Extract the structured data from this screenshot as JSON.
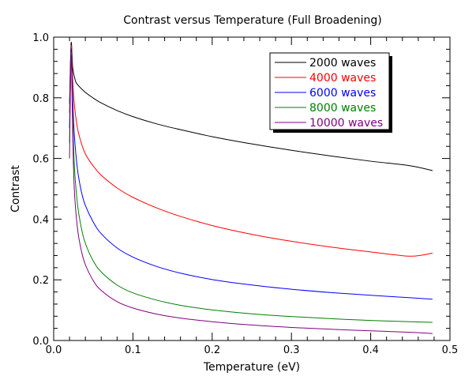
{
  "chart_data": {
    "type": "line",
    "title": "Contrast versus Temperature (Full Broadening)",
    "xlabel": "Temperature (eV)",
    "ylabel": "Contrast",
    "xlim": [
      0.0,
      0.5
    ],
    "ylim": [
      0.0,
      1.0
    ],
    "x_ticks": [
      "0.0",
      "0.1",
      "0.2",
      "0.3",
      "0.4",
      "0.5"
    ],
    "y_ticks": [
      "0.0",
      "0.2",
      "0.4",
      "0.6",
      "0.8",
      "1.0"
    ],
    "grid": false,
    "legend_position": "top-right",
    "series": [
      {
        "name": "2000 waves",
        "color": "#000000",
        "points": [
          [
            0.02,
            0.78
          ],
          [
            0.022,
            0.98
          ],
          [
            0.024,
            0.9
          ],
          [
            0.027,
            0.86
          ],
          [
            0.03,
            0.844
          ],
          [
            0.04,
            0.818
          ],
          [
            0.05,
            0.799
          ],
          [
            0.06,
            0.783
          ],
          [
            0.08,
            0.758
          ],
          [
            0.1,
            0.738
          ],
          [
            0.13,
            0.714
          ],
          [
            0.16,
            0.695
          ],
          [
            0.2,
            0.672
          ],
          [
            0.25,
            0.648
          ],
          [
            0.3,
            0.627
          ],
          [
            0.35,
            0.608
          ],
          [
            0.4,
            0.591
          ],
          [
            0.45,
            0.576
          ],
          [
            0.478,
            0.56
          ]
        ]
      },
      {
        "name": "4000 waves",
        "color": "#ff0000",
        "points": [
          [
            0.02,
            0.75
          ],
          [
            0.022,
            0.97
          ],
          [
            0.024,
            0.86
          ],
          [
            0.026,
            0.78
          ],
          [
            0.03,
            0.7
          ],
          [
            0.035,
            0.65
          ],
          [
            0.04,
            0.615
          ],
          [
            0.05,
            0.575
          ],
          [
            0.06,
            0.545
          ],
          [
            0.08,
            0.503
          ],
          [
            0.1,
            0.472
          ],
          [
            0.13,
            0.437
          ],
          [
            0.16,
            0.409
          ],
          [
            0.2,
            0.379
          ],
          [
            0.25,
            0.35
          ],
          [
            0.3,
            0.327
          ],
          [
            0.35,
            0.308
          ],
          [
            0.4,
            0.292
          ],
          [
            0.45,
            0.278
          ],
          [
            0.478,
            0.288
          ]
        ]
      },
      {
        "name": "6000 waves",
        "color": "#0000ff",
        "points": [
          [
            0.02,
            0.7
          ],
          [
            0.022,
            0.96
          ],
          [
            0.024,
            0.8
          ],
          [
            0.026,
            0.68
          ],
          [
            0.03,
            0.565
          ],
          [
            0.035,
            0.49
          ],
          [
            0.04,
            0.445
          ],
          [
            0.05,
            0.39
          ],
          [
            0.06,
            0.352
          ],
          [
            0.08,
            0.305
          ],
          [
            0.1,
            0.275
          ],
          [
            0.13,
            0.244
          ],
          [
            0.16,
            0.222
          ],
          [
            0.2,
            0.201
          ],
          [
            0.25,
            0.183
          ],
          [
            0.3,
            0.169
          ],
          [
            0.35,
            0.158
          ],
          [
            0.4,
            0.149
          ],
          [
            0.45,
            0.141
          ],
          [
            0.478,
            0.136
          ]
        ]
      },
      {
        "name": "8000 waves",
        "color": "#008000",
        "points": [
          [
            0.02,
            0.65
          ],
          [
            0.022,
            0.95
          ],
          [
            0.024,
            0.74
          ],
          [
            0.026,
            0.58
          ],
          [
            0.03,
            0.45
          ],
          [
            0.035,
            0.37
          ],
          [
            0.04,
            0.32
          ],
          [
            0.05,
            0.262
          ],
          [
            0.06,
            0.226
          ],
          [
            0.08,
            0.183
          ],
          [
            0.1,
            0.157
          ],
          [
            0.13,
            0.133
          ],
          [
            0.16,
            0.116
          ],
          [
            0.2,
            0.101
          ],
          [
            0.25,
            0.088
          ],
          [
            0.3,
            0.079
          ],
          [
            0.35,
            0.072
          ],
          [
            0.4,
            0.066
          ],
          [
            0.45,
            0.062
          ],
          [
            0.478,
            0.06
          ]
        ]
      },
      {
        "name": "10000 waves",
        "color": "#800080",
        "points": [
          [
            0.02,
            0.6
          ],
          [
            0.022,
            0.94
          ],
          [
            0.024,
            0.68
          ],
          [
            0.026,
            0.5
          ],
          [
            0.03,
            0.37
          ],
          [
            0.035,
            0.295
          ],
          [
            0.04,
            0.25
          ],
          [
            0.05,
            0.197
          ],
          [
            0.06,
            0.165
          ],
          [
            0.08,
            0.128
          ],
          [
            0.1,
            0.107
          ],
          [
            0.13,
            0.087
          ],
          [
            0.16,
            0.074
          ],
          [
            0.2,
            0.062
          ],
          [
            0.25,
            0.051
          ],
          [
            0.3,
            0.043
          ],
          [
            0.35,
            0.037
          ],
          [
            0.4,
            0.032
          ],
          [
            0.45,
            0.027
          ],
          [
            0.478,
            0.023
          ]
        ]
      }
    ]
  }
}
